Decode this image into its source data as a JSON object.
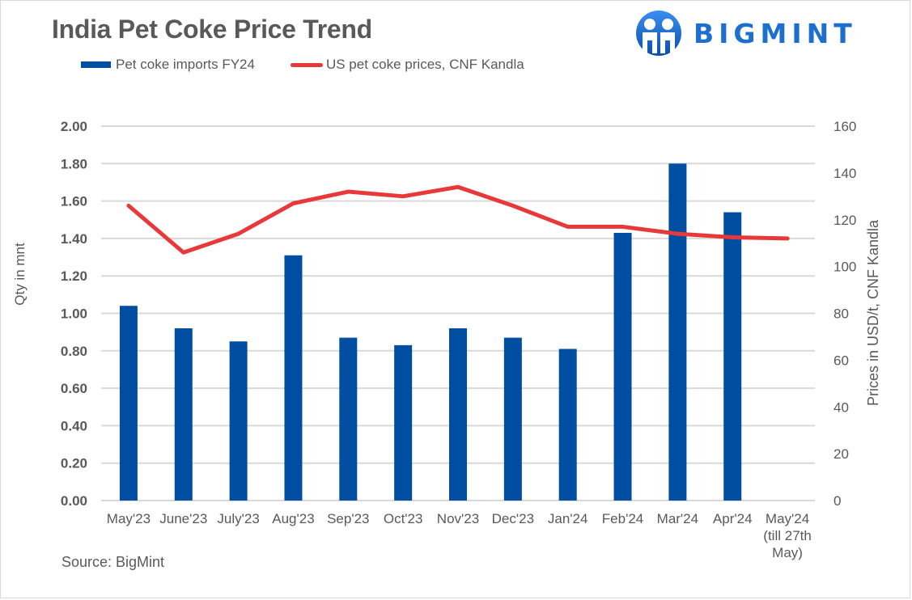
{
  "header": {
    "title": "India Pet Coke Price Trend",
    "logo_text": "BIGMINT",
    "logo_icon": "bigmint-people-icon"
  },
  "footer": {
    "source": "Source: BigMint"
  },
  "colors": {
    "bar": "#004ea2",
    "line": "#e8393a",
    "grid": "#d9d9d9",
    "text": "#595959"
  },
  "chart_data": {
    "type": "bar",
    "title": "India Pet Coke Price Trend",
    "categories": [
      "May'23",
      "June'23",
      "July'23",
      "Aug'23",
      "Sep'23",
      "Oct'23",
      "Nov'23",
      "Dec'23",
      "Jan'24",
      "Feb'24",
      "Mar'24",
      "Apr'24",
      "May'24\n(till 27th\nMay)"
    ],
    "series": [
      {
        "name": "Pet coke imports FY24",
        "type": "bar",
        "axis": "left",
        "values": [
          1.04,
          0.92,
          0.85,
          1.31,
          0.87,
          0.83,
          0.92,
          0.87,
          0.81,
          1.43,
          1.8,
          1.54,
          null
        ]
      },
      {
        "name": "US pet coke prices, CNF Kandla",
        "type": "line",
        "axis": "right",
        "values": [
          126,
          106,
          114,
          127,
          132,
          130,
          134,
          126,
          117,
          117,
          114,
          112.5,
          112
        ]
      }
    ],
    "ylabel": "Qty in mnt",
    "ylim": [
      0,
      2.0
    ],
    "yticks": [
      "0.00",
      "0.20",
      "0.40",
      "0.60",
      "0.80",
      "1.00",
      "1.20",
      "1.40",
      "1.60",
      "1.80",
      "2.00"
    ],
    "y2label": "Prices in USD/t, CNF Kandla",
    "y2lim": [
      0,
      160
    ],
    "y2ticks": [
      "0",
      "20",
      "40",
      "60",
      "80",
      "100",
      "120",
      "140",
      "160"
    ],
    "grid": true,
    "legend": "top"
  }
}
